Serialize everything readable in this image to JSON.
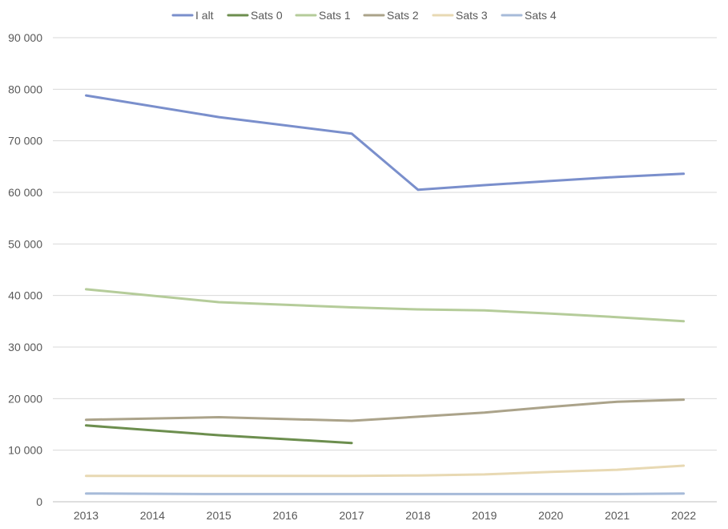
{
  "chart_data": {
    "type": "line",
    "title": "",
    "xlabel": "",
    "ylabel": "",
    "categories": [
      "2013",
      "2014",
      "2015",
      "2016",
      "2017",
      "2018",
      "2019",
      "2020",
      "2021",
      "2022"
    ],
    "ylim": [
      0,
      90000
    ],
    "yticks": [
      0,
      10000,
      20000,
      30000,
      40000,
      50000,
      60000,
      70000,
      80000,
      90000
    ],
    "ytick_labels": [
      "0",
      "10 000",
      "20 000",
      "30 000",
      "40 000",
      "50 000",
      "60 000",
      "70 000",
      "80 000",
      "90 000"
    ],
    "grid": "horizontal",
    "legend": "top-center",
    "series": [
      {
        "name": "I alt",
        "color": "#7A8FCC",
        "values": [
          78800,
          null,
          74600,
          null,
          71400,
          60500,
          61400,
          62200,
          63000,
          63600
        ]
      },
      {
        "name": "Sats 0",
        "color": "#6C8E4E",
        "values": [
          14800,
          null,
          12900,
          null,
          11400,
          null,
          null,
          null,
          null,
          null
        ]
      },
      {
        "name": "Sats 1",
        "color": "#B5CC9A",
        "values": [
          41200,
          null,
          38700,
          null,
          37700,
          37300,
          37100,
          36500,
          35800,
          35000
        ]
      },
      {
        "name": "Sats 2",
        "color": "#ABA38A",
        "values": [
          15900,
          null,
          16400,
          null,
          15700,
          16500,
          17300,
          18400,
          19400,
          19800
        ]
      },
      {
        "name": "Sats 3",
        "color": "#E8D9B3",
        "values": [
          5000,
          null,
          5000,
          null,
          5000,
          5100,
          5300,
          5800,
          6200,
          7000
        ]
      },
      {
        "name": "Sats 4",
        "color": "#A7BBD9",
        "values": [
          1600,
          null,
          1500,
          null,
          1500,
          1500,
          1500,
          1500,
          1500,
          1600
        ]
      }
    ]
  }
}
